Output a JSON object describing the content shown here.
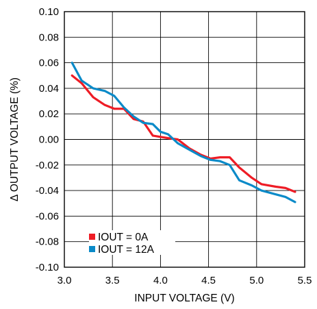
{
  "chart_data": {
    "type": "line",
    "title": "",
    "xlabel": "INPUT VOLTAGE (V)",
    "ylabel": "Δ OUTPUT VOLTAGE (%)",
    "xlim": [
      3.0,
      5.5
    ],
    "ylim": [
      -0.1,
      0.1
    ],
    "x_ticks": [
      "3.0",
      "3.5",
      "4.0",
      "4.5",
      "5.0",
      "5.5"
    ],
    "y_ticks": [
      "0.10",
      "0.08",
      "0.06",
      "0.04",
      "0.02",
      "0.00",
      "-0.02",
      "-0.04",
      "-0.06",
      "-0.08",
      "-0.10"
    ],
    "grid": true,
    "legend_position": "bottom-left",
    "series": [
      {
        "name": "IOUT = 0A",
        "color": "#ee1c25",
        "x": [
          3.08,
          3.18,
          3.3,
          3.42,
          3.52,
          3.62,
          3.72,
          3.82,
          3.92,
          4.0,
          4.08,
          4.18,
          4.3,
          4.42,
          4.52,
          4.62,
          4.72,
          4.82,
          4.95,
          5.05,
          5.2,
          5.3,
          5.4
        ],
        "y": [
          0.05,
          0.044,
          0.033,
          0.027,
          0.024,
          0.024,
          0.016,
          0.014,
          0.003,
          0.002,
          0.001,
          0.0,
          -0.007,
          -0.012,
          -0.015,
          -0.014,
          -0.014,
          -0.022,
          -0.03,
          -0.035,
          -0.037,
          -0.038,
          -0.041
        ]
      },
      {
        "name": "IOUT = 12A",
        "color": "#0a8ac8",
        "x": [
          3.08,
          3.18,
          3.3,
          3.42,
          3.52,
          3.62,
          3.72,
          3.82,
          3.92,
          4.0,
          4.08,
          4.18,
          4.3,
          4.42,
          4.52,
          4.62,
          4.72,
          4.82,
          4.95,
          5.05,
          5.2,
          5.3,
          5.4
        ],
        "y": [
          0.06,
          0.046,
          0.04,
          0.038,
          0.034,
          0.025,
          0.018,
          0.013,
          0.012,
          0.006,
          0.004,
          -0.003,
          -0.008,
          -0.013,
          -0.016,
          -0.017,
          -0.02,
          -0.032,
          -0.036,
          -0.04,
          -0.043,
          -0.045,
          -0.049
        ]
      }
    ]
  }
}
